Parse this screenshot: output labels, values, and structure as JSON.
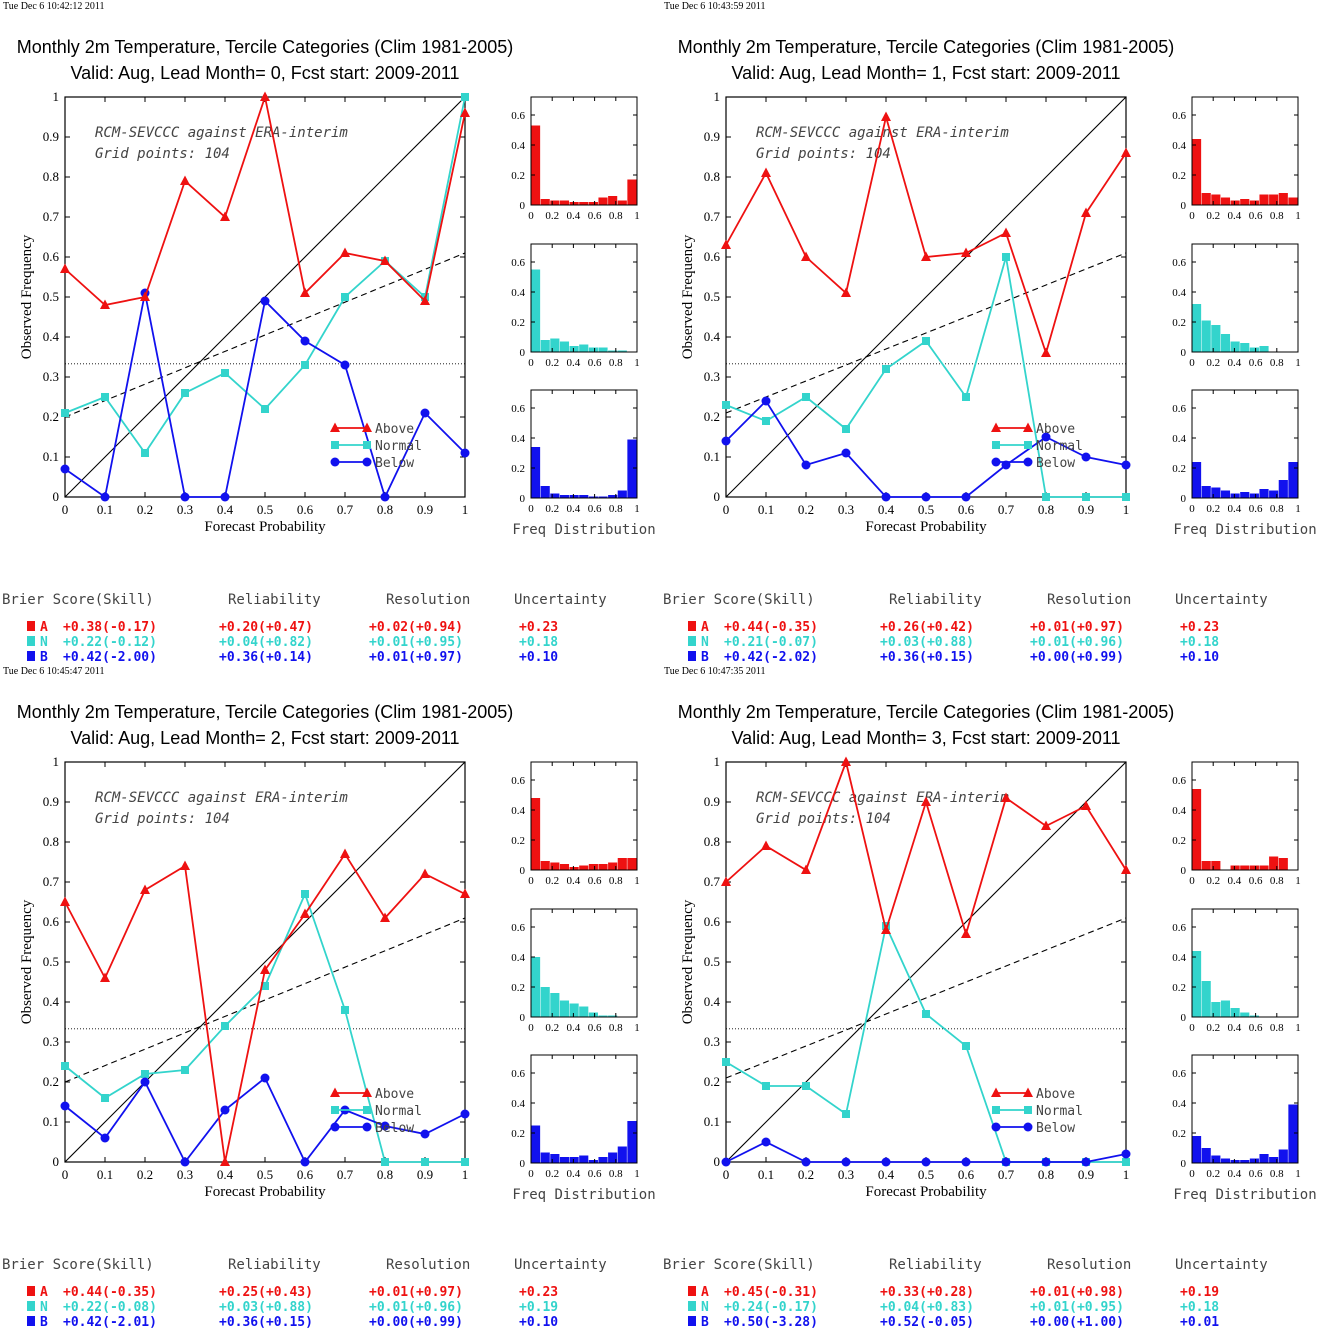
{
  "colors": {
    "A": "#ee1111",
    "N": "#33d4cc",
    "B": "#1111ee"
  },
  "common": {
    "xlabel": "Forecast Probability",
    "ylabel": "Observed Frequency",
    "freq_label": "Freq Distribution",
    "annotation_line1": "RCM-SEVCCC against ERA-interim",
    "annotation_line2": "Grid points:  104",
    "legend": [
      "Above",
      "Normal",
      "Below"
    ],
    "score_headers": [
      "Brier Score(Skill)",
      "Reliability",
      "Resolution",
      "Uncertainty"
    ],
    "x_ticks": [
      "0",
      "0.1",
      "0.2",
      "0.3",
      "0.4",
      "0.5",
      "0.6",
      "0.7",
      "0.8",
      "0.9",
      "1"
    ],
    "y_ticks": [
      "0",
      "0.1",
      "0.2",
      "0.3",
      "0.4",
      "0.5",
      "0.6",
      "0.7",
      "0.8",
      "0.9",
      "1"
    ],
    "hist_x_ticks": [
      "0",
      "0.2",
      "0.4",
      "0.6",
      "0.8",
      "1"
    ],
    "hist_y_ticks": [
      "0",
      "0.2",
      "0.4",
      "0.6"
    ]
  },
  "chart_data": [
    {
      "type": "line",
      "timestamp": "Tue Dec  6 10:42:12 2011",
      "title": "Monthly 2m Temperature, Tercile Categories (Clim 1981-2005)",
      "subtitle": "Valid: Aug, Lead Month= 0, Fcst start: 2009-2011",
      "xlim": [
        0,
        1
      ],
      "ylim": [
        0,
        1
      ],
      "x": [
        0,
        0.1,
        0.2,
        0.3,
        0.4,
        0.5,
        0.6,
        0.7,
        0.8,
        0.9,
        1
      ],
      "series": [
        {
          "key": "A",
          "name": "Above",
          "values": [
            0.57,
            0.48,
            0.5,
            0.79,
            0.7,
            1.0,
            0.51,
            0.61,
            0.59,
            0.49,
            0.96
          ]
        },
        {
          "key": "N",
          "name": "Normal",
          "values": [
            0.21,
            0.25,
            0.11,
            0.26,
            0.31,
            0.22,
            0.33,
            0.5,
            0.59,
            0.5,
            1.0
          ]
        },
        {
          "key": "B",
          "name": "Below",
          "values": [
            0.07,
            0.0,
            0.51,
            0.0,
            0.0,
            0.49,
            0.39,
            0.33,
            0.0,
            0.21,
            0.11
          ]
        }
      ],
      "climatology": 0.333,
      "reference_line": [
        0.2,
        0.61
      ],
      "histograms": {
        "A": [
          0.53,
          0.04,
          0.03,
          0.03,
          0.02,
          0.02,
          0.02,
          0.05,
          0.06,
          0.03,
          0.17
        ],
        "N": [
          0.55,
          0.08,
          0.09,
          0.07,
          0.04,
          0.05,
          0.03,
          0.03,
          0.01,
          0.01,
          0.0
        ],
        "B": [
          0.34,
          0.08,
          0.03,
          0.02,
          0.02,
          0.02,
          0.01,
          0.01,
          0.02,
          0.05,
          0.39
        ]
      },
      "scores": {
        "A": [
          "+0.38(-0.17)",
          "+0.20(+0.47)",
          "+0.02(+0.94)",
          "+0.23"
        ],
        "N": [
          "+0.22(-0.12)",
          "+0.04(+0.82)",
          "+0.01(+0.95)",
          "+0.18"
        ],
        "B": [
          "+0.42(-2.00)",
          "+0.36(+0.14)",
          "+0.01(+0.97)",
          "+0.10"
        ]
      }
    },
    {
      "type": "line",
      "timestamp": "Tue Dec  6 10:43:59 2011",
      "title": "Monthly 2m Temperature, Tercile Categories (Clim 1981-2005)",
      "subtitle": "Valid: Aug, Lead Month= 1, Fcst start: 2009-2011",
      "xlim": [
        0,
        1
      ],
      "ylim": [
        0,
        1
      ],
      "x": [
        0,
        0.1,
        0.2,
        0.3,
        0.4,
        0.5,
        0.6,
        0.7,
        0.8,
        0.9,
        1
      ],
      "series": [
        {
          "key": "A",
          "name": "Above",
          "values": [
            0.63,
            0.81,
            0.6,
            0.51,
            0.95,
            0.6,
            0.61,
            0.66,
            0.36,
            0.71,
            0.86
          ]
        },
        {
          "key": "N",
          "name": "Normal",
          "values": [
            0.23,
            0.19,
            0.25,
            0.17,
            0.32,
            0.39,
            0.25,
            0.6,
            0.0,
            0.0,
            0.0
          ]
        },
        {
          "key": "B",
          "name": "Below",
          "values": [
            0.14,
            0.24,
            0.08,
            0.11,
            0.0,
            0.0,
            0.0,
            0.08,
            0.15,
            0.1,
            0.08
          ]
        }
      ],
      "climatology": 0.333,
      "reference_line": [
        0.21,
        0.61
      ],
      "histograms": {
        "A": [
          0.44,
          0.08,
          0.07,
          0.05,
          0.03,
          0.04,
          0.03,
          0.07,
          0.07,
          0.08,
          0.05
        ],
        "N": [
          0.32,
          0.21,
          0.18,
          0.12,
          0.07,
          0.06,
          0.03,
          0.04,
          0.0,
          0.0,
          0.0
        ],
        "B": [
          0.24,
          0.08,
          0.07,
          0.05,
          0.03,
          0.04,
          0.03,
          0.06,
          0.05,
          0.12,
          0.24
        ]
      },
      "scores": {
        "A": [
          "+0.44(-0.35)",
          "+0.26(+0.42)",
          "+0.01(+0.97)",
          "+0.23"
        ],
        "N": [
          "+0.21(-0.07)",
          "+0.03(+0.88)",
          "+0.01(+0.96)",
          "+0.18"
        ],
        "B": [
          "+0.42(-2.02)",
          "+0.36(+0.15)",
          "+0.00(+0.99)",
          "+0.10"
        ]
      }
    },
    {
      "type": "line",
      "timestamp": "Tue Dec  6 10:45:47 2011",
      "title": "Monthly 2m Temperature, Tercile Categories (Clim 1981-2005)",
      "subtitle": "Valid: Aug, Lead Month= 2, Fcst start: 2009-2011",
      "xlim": [
        0,
        1
      ],
      "ylim": [
        0,
        1
      ],
      "x": [
        0,
        0.1,
        0.2,
        0.3,
        0.4,
        0.5,
        0.6,
        0.7,
        0.8,
        0.9,
        1
      ],
      "series": [
        {
          "key": "A",
          "name": "Above",
          "values": [
            0.65,
            0.46,
            0.68,
            0.74,
            0.0,
            0.48,
            0.62,
            0.77,
            0.61,
            0.72,
            0.67
          ]
        },
        {
          "key": "N",
          "name": "Normal",
          "values": [
            0.24,
            0.16,
            0.22,
            0.23,
            0.34,
            0.44,
            0.67,
            0.38,
            0.0,
            0.0,
            0.0
          ]
        },
        {
          "key": "B",
          "name": "Below",
          "values": [
            0.14,
            0.06,
            0.2,
            0.0,
            0.13,
            0.21,
            0.0,
            0.13,
            0.09,
            0.07,
            0.12
          ]
        }
      ],
      "climatology": 0.333,
      "reference_line": [
        0.2,
        0.61
      ],
      "histograms": {
        "A": [
          0.48,
          0.06,
          0.05,
          0.04,
          0.02,
          0.03,
          0.04,
          0.04,
          0.05,
          0.08,
          0.08
        ],
        "N": [
          0.4,
          0.2,
          0.16,
          0.11,
          0.09,
          0.07,
          0.03,
          0.01,
          0.01,
          0.0,
          0.0
        ],
        "B": [
          0.25,
          0.07,
          0.06,
          0.04,
          0.04,
          0.05,
          0.02,
          0.04,
          0.07,
          0.11,
          0.28
        ]
      },
      "scores": {
        "A": [
          "+0.44(-0.35)",
          "+0.25(+0.43)",
          "+0.01(+0.97)",
          "+0.23"
        ],
        "N": [
          "+0.22(-0.08)",
          "+0.03(+0.88)",
          "+0.01(+0.96)",
          "+0.19"
        ],
        "B": [
          "+0.42(-2.01)",
          "+0.36(+0.15)",
          "+0.00(+0.99)",
          "+0.10"
        ]
      }
    },
    {
      "type": "line",
      "timestamp": "Tue Dec  6 10:47:35 2011",
      "title": "Monthly 2m Temperature, Tercile Categories (Clim 1981-2005)",
      "subtitle": "Valid: Aug, Lead Month= 3, Fcst start: 2009-2011",
      "xlim": [
        0,
        1
      ],
      "ylim": [
        0,
        1
      ],
      "x": [
        0,
        0.1,
        0.2,
        0.3,
        0.4,
        0.5,
        0.6,
        0.7,
        0.8,
        0.9,
        1
      ],
      "series": [
        {
          "key": "A",
          "name": "Above",
          "values": [
            0.7,
            0.79,
            0.73,
            1.0,
            0.58,
            0.9,
            0.57,
            0.91,
            0.84,
            0.89,
            0.73
          ]
        },
        {
          "key": "N",
          "name": "Normal",
          "values": [
            0.25,
            0.19,
            0.19,
            0.12,
            0.59,
            0.37,
            0.29,
            0.0,
            0.0,
            0.0,
            0.0
          ]
        },
        {
          "key": "B",
          "name": "Below",
          "values": [
            0.0,
            0.05,
            0.0,
            0.0,
            0.0,
            0.0,
            0.0,
            0.0,
            0.0,
            0.0,
            0.02
          ]
        }
      ],
      "climatology": 0.333,
      "reference_line": [
        0.21,
        0.61
      ],
      "histograms": {
        "A": [
          0.54,
          0.06,
          0.06,
          0.0,
          0.03,
          0.03,
          0.03,
          0.03,
          0.09,
          0.08,
          0.0
        ],
        "N": [
          0.44,
          0.24,
          0.1,
          0.11,
          0.06,
          0.03,
          0.01,
          0.0,
          0.0,
          0.0,
          0.0
        ],
        "B": [
          0.18,
          0.1,
          0.05,
          0.03,
          0.02,
          0.02,
          0.03,
          0.06,
          0.04,
          0.09,
          0.39
        ]
      },
      "scores": {
        "A": [
          "+0.45(-0.31)",
          "+0.33(+0.28)",
          "+0.01(+0.98)",
          "+0.19"
        ],
        "N": [
          "+0.24(-0.17)",
          "+0.04(+0.83)",
          "+0.01(+0.95)",
          "+0.18"
        ],
        "B": [
          "+0.50(-3.28)",
          "+0.52(-0.05)",
          "+0.00(+1.00)",
          "+0.01"
        ]
      }
    }
  ]
}
